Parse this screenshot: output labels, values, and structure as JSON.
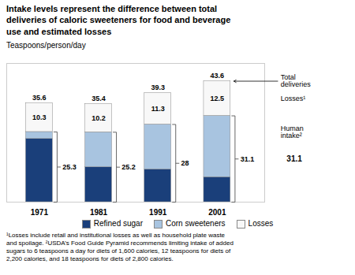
{
  "chart_data": {
    "type": "bar",
    "stacked": true,
    "title": "Intake levels represent the difference between total\ndeliveries of caloric sweeteners for food and beverage\nuse and estimated losses",
    "ylabel": "Teaspoons/person/day",
    "categories": [
      "1971",
      "1981",
      "1991",
      "2001"
    ],
    "series": [
      {
        "name": "Refined sugar",
        "color": "#1a3f7a",
        "values": [
          22.8,
          12.6,
          11.8,
          9.0
        ]
      },
      {
        "name": "Corn sweeteners",
        "color": "#a8c4e0",
        "values": [
          2.5,
          12.6,
          16.2,
          22.1
        ]
      },
      {
        "name": "Losses",
        "color": "#f8f8f8",
        "values": [
          10.3,
          10.2,
          11.3,
          12.5
        ],
        "data_labels": true
      }
    ],
    "totals": [
      35.6,
      35.4,
      39.3,
      43.6
    ],
    "human_intake": [
      25.3,
      25.2,
      28.0,
      31.1
    ],
    "annotations": [
      "Total\ndeliveries",
      "Losses¹",
      "Human\nintake²",
      "31.1"
    ],
    "footnote": "¹Losses include retail and institutional losses as well as household plate waste\nand spoilage. ²USDA’s Food Guide Pyramid recommends limiting intake of added\nsugars to 6 teaspoons a day for diets of 1,600 calories, 12 teaspoons for diets of\n2,200 calories, and 18 teaspoons for diets of 2,800 calories.",
    "ylim": [
      0,
      50
    ],
    "tick_labels": "x",
    "legend": "bottom"
  }
}
